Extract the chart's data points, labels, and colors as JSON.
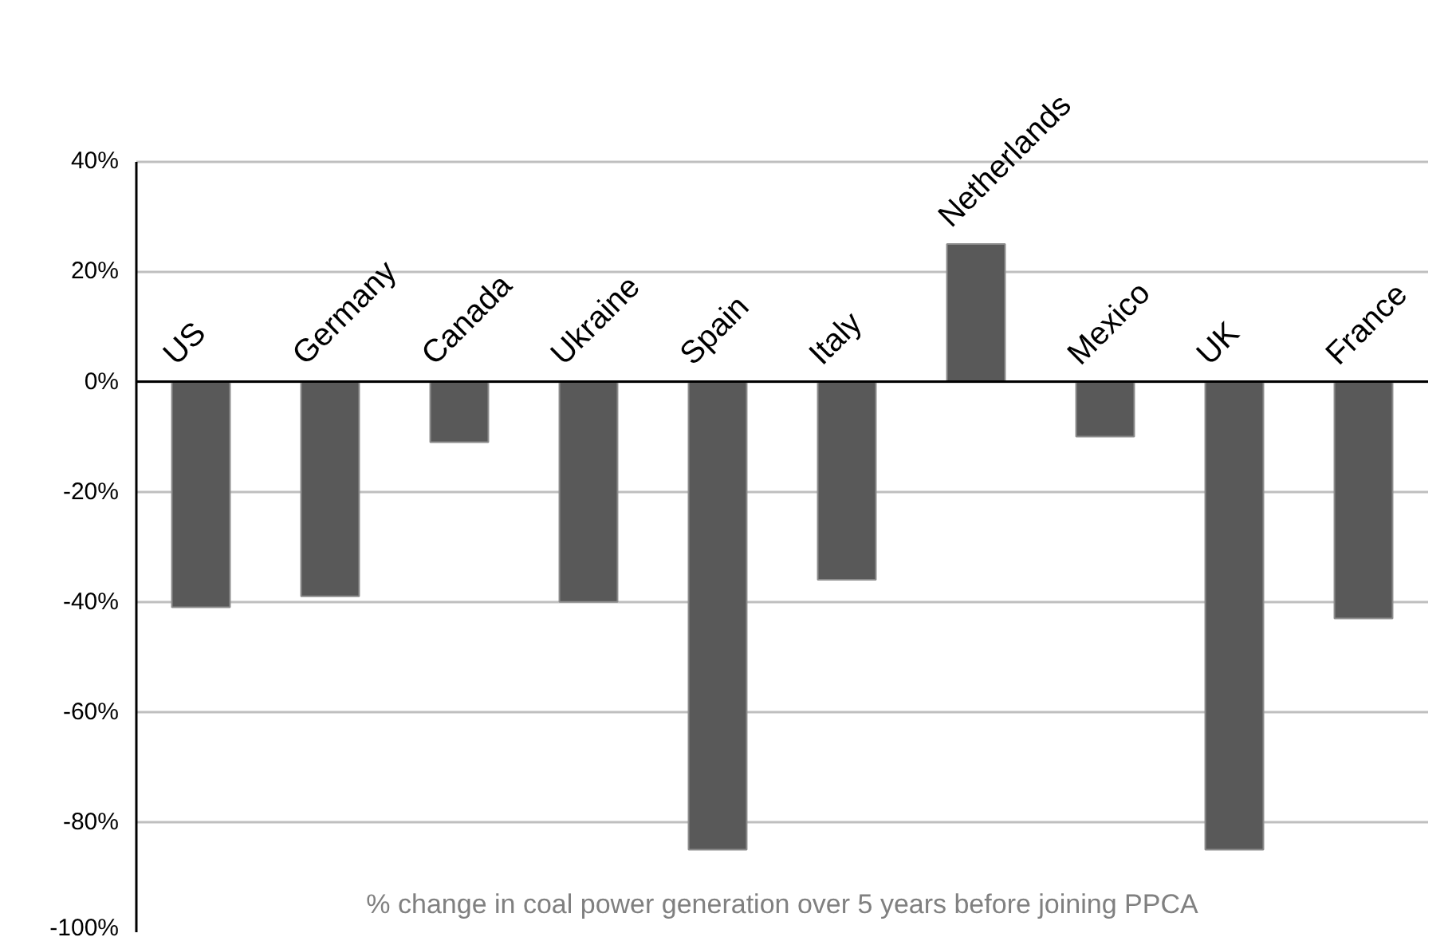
{
  "chart_data": {
    "type": "bar",
    "categories": [
      "US",
      "Germany",
      "Canada",
      "Ukraine",
      "Spain",
      "Italy",
      "Netherlands",
      "Mexico",
      "UK",
      "France"
    ],
    "values": [
      -41,
      -39,
      -11,
      -40,
      -85,
      -36,
      25,
      -10,
      -85,
      -43
    ],
    "color": "#595959",
    "ylim": [
      -100,
      40
    ],
    "yticks": [
      {
        "value": -100,
        "label": "-100%"
      },
      {
        "value": -80,
        "label": "-80%"
      },
      {
        "value": -60,
        "label": "-60%"
      },
      {
        "value": -40,
        "label": "-40%"
      },
      {
        "value": -20,
        "label": "-20%"
      },
      {
        "value": 0,
        "label": "0%"
      },
      {
        "value": 20,
        "label": "20%"
      },
      {
        "value": 40,
        "label": "40%"
      }
    ],
    "grid": "y",
    "annotations": [
      "% change in coal power generation over 5 years before joining PPCA"
    ]
  }
}
